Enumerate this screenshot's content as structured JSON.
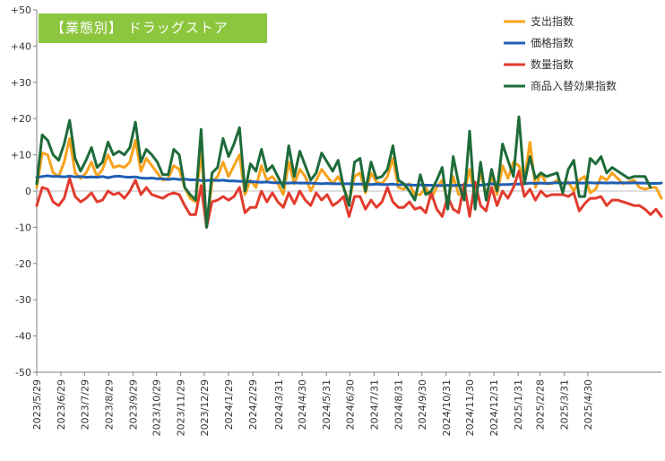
{
  "chart_data": {
    "type": "line",
    "title": "【業態別】 ドラッグストア",
    "title_color": "#8cc63e",
    "xlabel": "",
    "ylabel": "",
    "ylim": [
      -50,
      50
    ],
    "y_ticks": [
      50,
      40,
      30,
      20,
      10,
      0,
      -10,
      -20,
      -30,
      -40,
      -50
    ],
    "y_tick_labels": [
      "+50",
      "+40",
      "+30",
      "+20",
      "+10",
      "0",
      "-10",
      "-20",
      "-30",
      "-40",
      "-50"
    ],
    "x_tick_labels": [
      "2023/5/29",
      "2023/6/29",
      "2023/7/29",
      "2023/8/29",
      "2023/9/29",
      "2023/10/29",
      "2023/11/29",
      "2023/12/29",
      "2024/1/29",
      "2024/2/29",
      "2024/3/31",
      "2024/4/30",
      "2024/5/31",
      "2024/6/30",
      "2024/7/31",
      "2024/8/31",
      "2024/9/30",
      "2024/10/31",
      "2024/11/30",
      "2024/12/31",
      "2025/1/31",
      "2025/2/28",
      "2025/3/31",
      "2025/4/30"
    ],
    "x_tick_weeks": [
      0,
      4.43,
      8.71,
      13.14,
      17.57,
      21.86,
      26.29,
      30.57,
      35,
      39.43,
      44.14,
      48.43,
      52.86,
      57.14,
      61.57,
      66,
      70.29,
      74.71,
      79,
      83.43,
      87.86,
      91.86,
      96.29,
      100.57
    ],
    "grid": false,
    "legend_position": "top-right",
    "series": [
      {
        "name": "支出指数",
        "color": "#f7a21b",
        "values": [
          1,
          10.5,
          10,
          5,
          4,
          8,
          14.5,
          5,
          3.5,
          5,
          8,
          4,
          6,
          10,
          6.5,
          7,
          6.5,
          8,
          14,
          5.5,
          9,
          7,
          5,
          3,
          3.5,
          7,
          6,
          1,
          -2,
          -3,
          11,
          -10,
          2.5,
          4,
          8,
          4,
          7,
          10,
          -1,
          3,
          1,
          7,
          3,
          4,
          2,
          -1,
          8,
          2,
          6,
          4,
          0,
          3,
          6,
          4,
          2,
          4,
          1,
          -3,
          4,
          5,
          -0.5,
          5,
          2.5,
          2,
          4,
          9,
          1,
          0.5,
          2,
          -1,
          -1,
          1,
          -2,
          1,
          3,
          -3,
          4,
          -1,
          -0.5,
          6,
          -2,
          5,
          -1,
          4,
          -1,
          7,
          3.5,
          8,
          7,
          3,
          13.5,
          1,
          5,
          2,
          2,
          3,
          2,
          2.5,
          0,
          3,
          4,
          -0.5,
          0.5,
          4,
          3,
          5,
          3.5,
          2,
          2.5,
          3,
          1,
          0.5,
          1,
          1,
          -2
        ]
      },
      {
        "name": "価格指数",
        "color": "#1f5fb4",
        "values": [
          3.8,
          4,
          4.2,
          4,
          4,
          3.9,
          4.1,
          3.9,
          4,
          3.8,
          3.9,
          3.8,
          4,
          3.7,
          4,
          4.1,
          3.9,
          3.8,
          3.9,
          3.6,
          3.5,
          3.6,
          3.4,
          3.4,
          3.2,
          3.4,
          3.2,
          3.3,
          3.1,
          3.1,
          2.9,
          2.9,
          3,
          2.9,
          3,
          2.8,
          2.8,
          2.7,
          2.7,
          2.6,
          2.5,
          2.4,
          2.5,
          2.3,
          2.3,
          2.2,
          2.2,
          2.3,
          2.2,
          2.2,
          2.2,
          2.1,
          2,
          2.1,
          2,
          2,
          2,
          2,
          1.9,
          1.9,
          1.9,
          1.8,
          1.9,
          1.8,
          1.8,
          1.9,
          1.7,
          1.8,
          1.7,
          1.6,
          1.7,
          1.6,
          1.6,
          1.5,
          1.5,
          1.6,
          1.5,
          1.6,
          1.6,
          1.5,
          1.6,
          1.6,
          1.8,
          2,
          1.7,
          1.8,
          1.8,
          1.9,
          1.9,
          2,
          2.2,
          2.1,
          2.2,
          2.1,
          2.2,
          2.3,
          2.2,
          2.2,
          2.3,
          2.2,
          2.2,
          2.3,
          2.2,
          2.3,
          2.2,
          2.3,
          2.2,
          2.3,
          2.2,
          2.3,
          2.2,
          2.2,
          2.1,
          2.1,
          2.2
        ]
      },
      {
        "name": "数量指数",
        "color": "#e23b2e",
        "values": [
          -4,
          1,
          0.5,
          -3,
          -4,
          -2,
          3.5,
          -1.5,
          -3,
          -2,
          -0.5,
          -3,
          -2.5,
          0,
          -1,
          -0.5,
          -2,
          0,
          3,
          -1,
          1,
          -1,
          -1.5,
          -2,
          -1,
          -0.5,
          -1,
          -4,
          -6.5,
          -6.5,
          1.5,
          -10,
          -3,
          -2.5,
          -1.5,
          -2.5,
          -1.5,
          1,
          -6,
          -4.5,
          -4.5,
          0,
          -3,
          -0.5,
          -3,
          -4.5,
          -0.5,
          -3.5,
          0,
          -2.5,
          -4,
          -0.5,
          -2.5,
          -1,
          -4,
          -3,
          -1.5,
          -7,
          -1.5,
          -1.5,
          -5,
          -2.5,
          -4.5,
          -3,
          1,
          -3,
          -4.5,
          -4.5,
          -3,
          -5,
          -4.5,
          -6,
          -0.5,
          -5,
          -7,
          -1.5,
          -5,
          -6,
          2,
          -7,
          2.5,
          -4,
          -5.5,
          1,
          -4,
          0,
          -2,
          1,
          5.5,
          -1.5,
          0.5,
          -2.5,
          0,
          -1.5,
          -1,
          -1,
          -1,
          -1.5,
          -0.5,
          -5.5,
          -3.5,
          -2,
          -2,
          -1.5,
          -4,
          -2.5,
          -2.5,
          -3,
          -3.5,
          -4,
          -4,
          -5,
          -6.5,
          -5,
          -7
        ]
      },
      {
        "name": "商品入替効果指数",
        "color": "#1e6b3a",
        "values": [
          2,
          15.5,
          14,
          10,
          8.5,
          13,
          19.5,
          9,
          5.5,
          8.5,
          12,
          6.5,
          8,
          13.5,
          10,
          11,
          10,
          12,
          19,
          8,
          11.5,
          10,
          8,
          4.5,
          4.5,
          11.5,
          10,
          1,
          -1,
          -2.5,
          17,
          -10,
          5,
          6.5,
          14.5,
          9.5,
          13,
          17.5,
          0,
          7.5,
          5.5,
          11.5,
          5.5,
          7,
          4,
          1,
          12.5,
          4,
          11,
          7,
          3,
          5,
          10.5,
          8,
          5.5,
          8.5,
          1,
          -4,
          8,
          9,
          0,
          8,
          3.5,
          4,
          6,
          12.5,
          3,
          2,
          0,
          -2.5,
          4.5,
          -1,
          0,
          3,
          6.5,
          -5,
          9.5,
          2,
          -2.5,
          16.5,
          -5,
          8,
          -2.5,
          6,
          0,
          13,
          8.5,
          4,
          20.5,
          2,
          9.5,
          3.5,
          5,
          4,
          4.5,
          5,
          -0.5,
          6,
          8.5,
          -1.5,
          -1.5,
          9,
          7.5,
          9.5,
          5,
          6.5,
          5.5,
          4.5,
          3.5,
          4,
          4,
          4,
          1
        ]
      }
    ]
  }
}
